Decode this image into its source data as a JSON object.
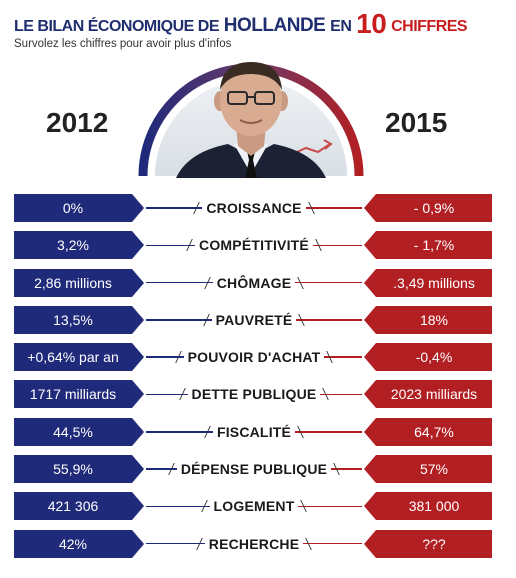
{
  "header": {
    "title_part1": "LE BILAN ÉCONOMIQUE DE",
    "title_name": "HOLLANDE",
    "title_part2": "EN",
    "title_number": "10",
    "title_part3": "CHIFFRES",
    "subtitle": "Survolez les chiffres pour avoir plus d'infos"
  },
  "years": {
    "left": "2012",
    "right": "2015"
  },
  "colors": {
    "left": "#1f2a7a",
    "right": "#b21f23",
    "title": "#1f2e6e",
    "accent": "#c81e1e"
  },
  "rows": [
    {
      "label": "CROISSANCE",
      "left": "0%",
      "right": "- 0,9%"
    },
    {
      "label": "COMPÉTITIVITÉ",
      "left": "3,2%",
      "right": "- 1,7%"
    },
    {
      "label": "CHÔMAGE",
      "left": "2,86 millions",
      "right": ".3,49 millions"
    },
    {
      "label": "PAUVRETÉ",
      "left": "13,5%",
      "right": "18%"
    },
    {
      "label": "POUVOIR D'ACHAT",
      "left": "+0,64% par an",
      "right": "-0,4%"
    },
    {
      "label": "DETTE PUBLIQUE",
      "left": "1717 milliards",
      "right": "2023 milliards"
    },
    {
      "label": "FISCALITÉ",
      "left": "44,5%",
      "right": "64,7%"
    },
    {
      "label": "DÉPENSE PUBLIQUE",
      "left": "55,9%",
      "right": "57%"
    },
    {
      "label": "LOGEMENT",
      "left": "421 306",
      "right": "381 000"
    },
    {
      "label": "RECHERCHE",
      "left": "42%",
      "right": "???"
    }
  ]
}
